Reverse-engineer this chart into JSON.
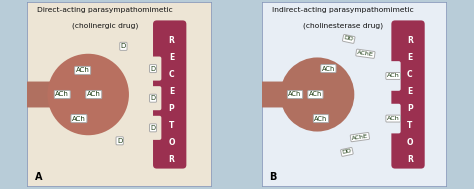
{
  "bg_outer": "#b8ccd8",
  "bg_panel_A": "#ede5d5",
  "bg_panel_B": "#e8eef5",
  "receptor_color": "#9b3050",
  "receptor_color2": "#8a2844",
  "axon_color": "#b07060",
  "ball_color_A": "#b87060",
  "ball_color_B": "#b07060",
  "label_bg": "#ffffff",
  "label_border": "#999999",
  "text_green": "#2a5020",
  "title_color": "#111111",
  "panel_A_title_line1": "Direct-acting parasympathomimetic",
  "panel_A_title_line2": "(cholinergic drug)",
  "panel_B_title_line1": "Indirect-acting parasympathomimetic",
  "panel_B_title_line2": "(cholinesterase drug)",
  "receptor_word": "RECEPTOR"
}
